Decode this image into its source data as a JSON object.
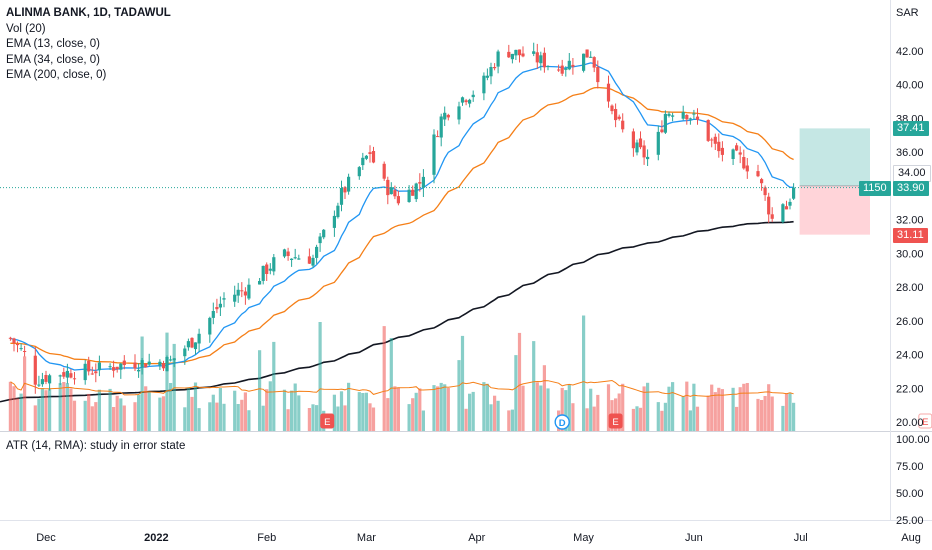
{
  "legend": {
    "title": "ALINMA BANK, 1D, TADAWUL",
    "lines": [
      "Vol (20)",
      "EMA (13, close, 0)",
      "EMA (34, close, 0)",
      "EMA (200, close, 0)"
    ]
  },
  "atr_label": "ATR (14, RMA): study in error state",
  "currency": "SAR",
  "price_tags": {
    "target": "37.41",
    "entry_level": "34.00",
    "countdown": "1150",
    "last": "33.90",
    "stop": "31.11"
  },
  "event_markers": [
    {
      "label": "E",
      "date": "2022-02-18"
    },
    {
      "label": "D",
      "date": "2022-04-25"
    },
    {
      "label": "E",
      "date": "2022-05-10"
    },
    {
      "label": "E",
      "date": "2022-08-05"
    }
  ],
  "colors": {
    "up": "#26a69a",
    "down": "#ef5350",
    "ema13": "#2196f3",
    "ema34": "#f57f17",
    "ema200": "#131722",
    "target_zone": "#b2dfdb",
    "stop_zone": "#ffcdd2"
  },
  "chart_data": {
    "type": "candlestick",
    "x_ticks": [
      "Dec",
      "2022",
      "Feb",
      "Mar",
      "Apr",
      "May",
      "Jun",
      "Jul",
      "Aug"
    ],
    "y_ticks": [
      "42.00",
      "40.00",
      "38.00",
      "36.00",
      "34.00",
      "32.00",
      "30.00",
      "28.00",
      "26.00",
      "24.00",
      "22.00",
      "20.00"
    ],
    "atr_ticks": [
      "100.00",
      "75.00",
      "50.00",
      "25.00"
    ],
    "ylim": [
      19.6,
      44.3
    ],
    "grid": false,
    "keypoints": [
      {
        "date": "2021-11-20",
        "close": 25.2
      },
      {
        "date": "2021-11-25",
        "close": 24.0
      },
      {
        "date": "2021-11-28",
        "close": 22.5
      },
      {
        "date": "2021-12-05",
        "close": 22.9
      },
      {
        "date": "2021-12-15",
        "close": 23.1
      },
      {
        "date": "2021-12-25",
        "close": 23.5
      },
      {
        "date": "2022-01-05",
        "close": 23.6
      },
      {
        "date": "2022-01-12",
        "close": 25.0
      },
      {
        "date": "2022-01-20",
        "close": 27.3
      },
      {
        "date": "2022-01-27",
        "close": 28.0
      },
      {
        "date": "2022-02-05",
        "close": 29.9
      },
      {
        "date": "2022-02-14",
        "close": 29.7
      },
      {
        "date": "2022-02-22",
        "close": 33.5
      },
      {
        "date": "2022-03-02",
        "close": 36.0
      },
      {
        "date": "2022-03-05",
        "close": 34.3
      },
      {
        "date": "2022-03-10",
        "close": 33.2
      },
      {
        "date": "2022-03-16",
        "close": 34.2
      },
      {
        "date": "2022-03-22",
        "close": 38.0
      },
      {
        "date": "2022-03-26",
        "close": 39.0
      },
      {
        "date": "2022-04-02",
        "close": 39.8
      },
      {
        "date": "2022-04-08",
        "close": 42.1
      },
      {
        "date": "2022-04-18",
        "close": 41.5
      },
      {
        "date": "2022-04-24",
        "close": 41.0
      },
      {
        "date": "2022-05-03",
        "close": 41.9
      },
      {
        "date": "2022-05-08",
        "close": 38.6
      },
      {
        "date": "2022-05-14",
        "close": 36.5
      },
      {
        "date": "2022-05-20",
        "close": 35.5
      },
      {
        "date": "2022-05-24",
        "close": 38.3
      },
      {
        "date": "2022-05-28",
        "close": 38.7
      },
      {
        "date": "2022-06-02",
        "close": 37.8
      },
      {
        "date": "2022-06-08",
        "close": 36.0
      },
      {
        "date": "2022-06-14",
        "close": 35.6
      },
      {
        "date": "2022-06-19",
        "close": 34.6
      },
      {
        "date": "2022-06-23",
        "close": 32.0
      },
      {
        "date": "2022-06-25",
        "close": 33.5
      },
      {
        "date": "2022-06-27",
        "close": 32.7
      },
      {
        "date": "2022-06-29",
        "close": 33.9
      }
    ],
    "position_tool": {
      "entry": 34.0,
      "target": 37.41,
      "stop": 31.11,
      "start_date": "2022-06-29",
      "end_date": "2022-08-05"
    },
    "last_price": 33.9
  }
}
